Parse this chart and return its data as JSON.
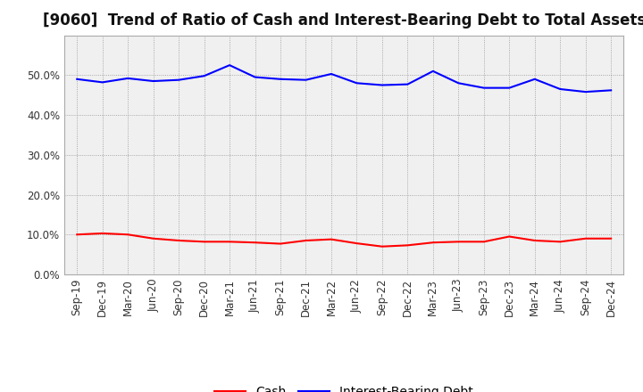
{
  "title": "[9060]  Trend of Ratio of Cash and Interest-Bearing Debt to Total Assets",
  "x_labels": [
    "Sep-19",
    "Dec-19",
    "Mar-20",
    "Jun-20",
    "Sep-20",
    "Dec-20",
    "Mar-21",
    "Jun-21",
    "Sep-21",
    "Dec-21",
    "Mar-22",
    "Jun-22",
    "Sep-22",
    "Dec-22",
    "Mar-23",
    "Jun-23",
    "Sep-23",
    "Dec-23",
    "Mar-24",
    "Jun-24",
    "Sep-24",
    "Dec-24"
  ],
  "cash": [
    0.1,
    0.103,
    0.1,
    0.09,
    0.085,
    0.082,
    0.082,
    0.08,
    0.077,
    0.085,
    0.088,
    0.078,
    0.07,
    0.073,
    0.08,
    0.082,
    0.082,
    0.095,
    0.085,
    0.082,
    0.09,
    0.09
  ],
  "debt": [
    0.49,
    0.482,
    0.492,
    0.485,
    0.488,
    0.498,
    0.525,
    0.495,
    0.49,
    0.488,
    0.503,
    0.48,
    0.475,
    0.477,
    0.51,
    0.48,
    0.468,
    0.468,
    0.49,
    0.465,
    0.458,
    0.462
  ],
  "cash_color": "#ff0000",
  "debt_color": "#0000ff",
  "background_color": "#ffffff",
  "plot_bg_color": "#f0f0f0",
  "grid_color": "#888888",
  "ylim": [
    0.0,
    0.6
  ],
  "yticks": [
    0.0,
    0.1,
    0.2,
    0.3,
    0.4,
    0.5
  ],
  "legend_cash": "Cash",
  "legend_debt": "Interest-Bearing Debt",
  "title_fontsize": 12,
  "axis_fontsize": 8.5,
  "legend_fontsize": 10
}
